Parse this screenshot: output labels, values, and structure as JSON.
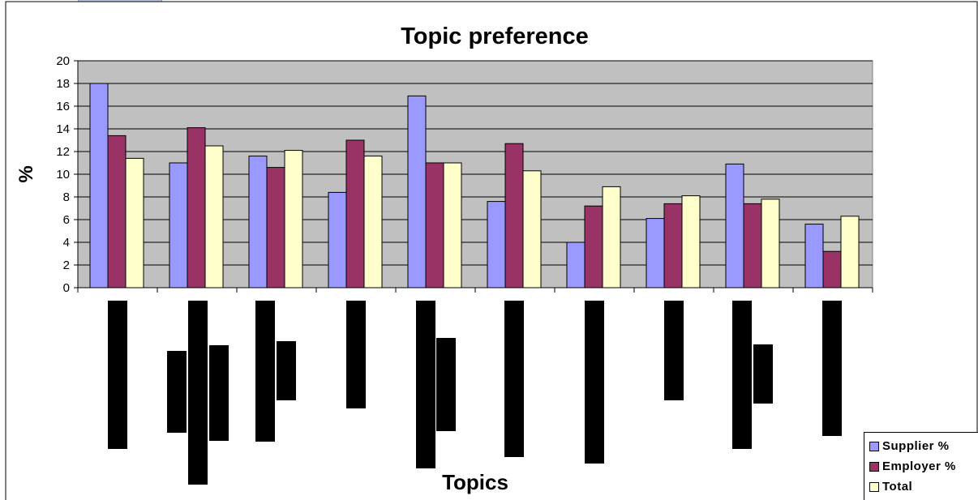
{
  "chart_data": {
    "type": "bar",
    "title": "Topic preference",
    "xlabel": "Topics",
    "ylabel": "%",
    "ylim": [
      0,
      20
    ],
    "yticks": [
      0,
      2,
      4,
      6,
      8,
      10,
      12,
      14,
      16,
      18,
      20
    ],
    "grid": true,
    "legend_position": "bottom-right",
    "categories": [
      "",
      "",
      "",
      "",
      "",
      "",
      "",
      "",
      "",
      ""
    ],
    "series": [
      {
        "name": "Supplier %",
        "color": "#9999ff",
        "values": [
          18,
          11,
          11.6,
          8.4,
          16.9,
          7.6,
          4,
          6.1,
          10.9,
          5.6
        ]
      },
      {
        "name": "Employer %",
        "color": "#993366",
        "values": [
          13.4,
          14.1,
          10.6,
          13,
          11,
          12.7,
          7.2,
          7.4,
          7.4,
          3.2
        ]
      },
      {
        "name": "Total",
        "color": "#ffffcc",
        "values": [
          11.4,
          12.5,
          12.1,
          11.6,
          11,
          10.3,
          8.9,
          8.1,
          7.8,
          6.3
        ]
      }
    ],
    "plot_background": "#c0c0c0"
  }
}
